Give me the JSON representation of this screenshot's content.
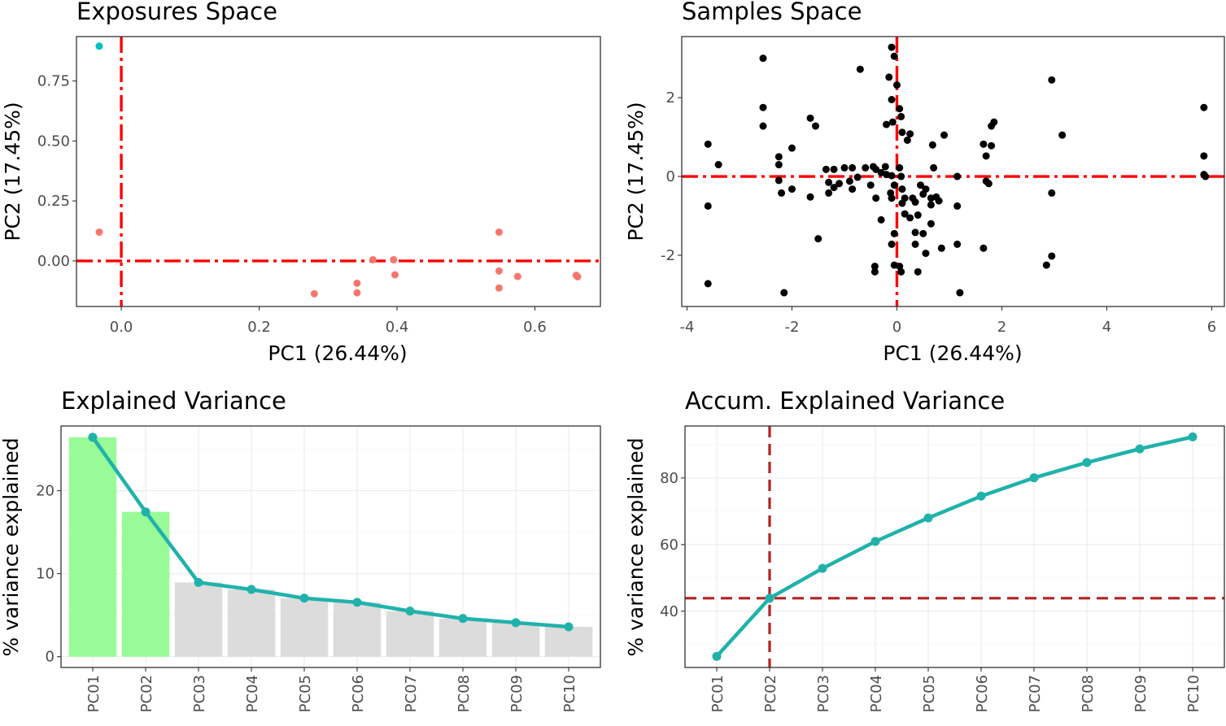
{
  "chart_data": [
    {
      "type": "scatter",
      "title": "Exposures Space",
      "xlabel": "PC1 (26.44%)",
      "ylabel": "PC2 (17.45%)",
      "xlim": [
        -0.065,
        0.695
      ],
      "ylim": [
        -0.19,
        0.935
      ],
      "xticks": [
        0.0,
        0.2,
        0.4,
        0.6
      ],
      "xtick_labels": [
        "0.0",
        "0.2",
        "0.4",
        "0.6"
      ],
      "yticks": [
        0.0,
        0.25,
        0.5,
        0.75
      ],
      "ytick_labels": [
        "0.00",
        "0.25",
        "0.50",
        "0.75"
      ],
      "grid": false,
      "reference_lines": {
        "x": 0,
        "y": 0,
        "color": "#ff0000",
        "style": "dashdot"
      },
      "series": [
        {
          "color": "#00bfc4",
          "points": [
            [
              -0.032,
              0.895
            ]
          ]
        },
        {
          "color": "#f8766d",
          "points": [
            [
              -0.032,
              0.12
            ],
            [
              0.28,
              -0.137
            ],
            [
              0.342,
              -0.093
            ],
            [
              0.342,
              -0.133
            ],
            [
              0.365,
              0.005
            ],
            [
              0.395,
              0.005
            ],
            [
              0.397,
              -0.058
            ],
            [
              0.548,
              0.12
            ],
            [
              0.548,
              -0.042
            ],
            [
              0.548,
              -0.113
            ],
            [
              0.575,
              -0.065
            ],
            [
              0.66,
              -0.06
            ],
            [
              0.662,
              -0.066
            ]
          ]
        }
      ]
    },
    {
      "type": "scatter",
      "title": "Samples Space",
      "xlabel": "PC1 (26.44%)",
      "ylabel": "PC2 (17.45%)",
      "xlim": [
        -4.1,
        6.24
      ],
      "ylim": [
        -3.3,
        3.55
      ],
      "xticks": [
        -4,
        -2,
        0,
        2,
        4,
        6
      ],
      "xtick_labels": [
        "-4",
        "-2",
        "0",
        "2",
        "4",
        "6"
      ],
      "yticks": [
        -2,
        0,
        2
      ],
      "ytick_labels": [
        "-2",
        "0",
        "2"
      ],
      "grid": false,
      "reference_lines": {
        "x": 0,
        "y": 0,
        "color": "#ff0000",
        "style": "dashdot"
      },
      "series": [
        {
          "color": "#000000",
          "points": [
            [
              -3.6,
              0.82
            ],
            [
              -3.4,
              0.3
            ],
            [
              -3.6,
              -0.75
            ],
            [
              -3.6,
              -2.72
            ],
            [
              -2.55,
              3.0
            ],
            [
              -2.55,
              1.75
            ],
            [
              -2.55,
              1.28
            ],
            [
              -2.25,
              0.5
            ],
            [
              -2.25,
              0.3
            ],
            [
              -2.25,
              -0.1
            ],
            [
              -2.2,
              -0.42
            ],
            [
              -2.0,
              0.72
            ],
            [
              -2.0,
              -0.32
            ],
            [
              -2.15,
              -2.95
            ],
            [
              -1.65,
              1.48
            ],
            [
              -1.55,
              1.28
            ],
            [
              -1.65,
              -0.52
            ],
            [
              -1.5,
              -1.58
            ],
            [
              -1.35,
              0.18
            ],
            [
              -1.3,
              -0.15
            ],
            [
              -1.3,
              -0.42
            ],
            [
              -1.2,
              0.18
            ],
            [
              -1.1,
              -0.18
            ],
            [
              -1.2,
              -0.28
            ],
            [
              -1.0,
              0.22
            ],
            [
              -0.9,
              -0.12
            ],
            [
              -0.85,
              -0.32
            ],
            [
              -0.85,
              0.22
            ],
            [
              -0.7,
              2.72
            ],
            [
              -0.75,
              -0.02
            ],
            [
              -0.6,
              0.22
            ],
            [
              -0.5,
              -0.22
            ],
            [
              -0.45,
              0.25
            ],
            [
              -0.4,
              0.18
            ],
            [
              -0.3,
              0.1
            ],
            [
              -0.4,
              -0.55
            ],
            [
              -0.42,
              -2.28
            ],
            [
              -0.42,
              -2.42
            ],
            [
              -0.3,
              -1.1
            ],
            [
              -0.2,
              1.32
            ],
            [
              -0.22,
              0.25
            ],
            [
              -0.2,
              0.05
            ],
            [
              -0.12,
              -0.42
            ],
            [
              -0.1,
              -0.55
            ],
            [
              -0.15,
              2.52
            ],
            [
              -0.1,
              1.95
            ],
            [
              -0.1,
              3.28
            ],
            [
              -0.05,
              3.05
            ],
            [
              0.0,
              2.32
            ],
            [
              -0.1,
              0.02
            ],
            [
              -0.05,
              -0.22
            ],
            [
              -0.08,
              1.38
            ],
            [
              -0.05,
              -1.45
            ],
            [
              -0.1,
              -1.72
            ],
            [
              -0.05,
              -2.25
            ],
            [
              0.05,
              1.72
            ],
            [
              0.08,
              1.52
            ],
            [
              0.1,
              1.12
            ],
            [
              0.05,
              0.22
            ],
            [
              0.08,
              0.0
            ],
            [
              0.1,
              -0.32
            ],
            [
              0.15,
              -0.55
            ],
            [
              0.1,
              -0.68
            ],
            [
              0.05,
              -2.28
            ],
            [
              0.08,
              -2.42
            ],
            [
              0.2,
              0.92
            ],
            [
              0.25,
              1.08
            ],
            [
              0.15,
              -0.95
            ],
            [
              0.25,
              -1.05
            ],
            [
              0.3,
              -0.55
            ],
            [
              0.35,
              -0.65
            ],
            [
              0.35,
              -1.42
            ],
            [
              0.35,
              -1.72
            ],
            [
              0.4,
              -0.98
            ],
            [
              0.45,
              -0.22
            ],
            [
              0.4,
              -2.42
            ],
            [
              0.5,
              -1.45
            ],
            [
              0.55,
              -0.32
            ],
            [
              0.5,
              -0.45
            ],
            [
              0.55,
              -1.95
            ],
            [
              0.65,
              -0.55
            ],
            [
              0.65,
              -0.72
            ],
            [
              0.65,
              -1.2
            ],
            [
              0.68,
              0.8
            ],
            [
              0.7,
              0.22
            ],
            [
              0.75,
              -0.52
            ],
            [
              0.8,
              -0.62
            ],
            [
              0.85,
              -1.82
            ],
            [
              0.9,
              1.05
            ],
            [
              1.15,
              0.0
            ],
            [
              1.15,
              -0.75
            ],
            [
              1.15,
              -1.72
            ],
            [
              1.2,
              -2.95
            ],
            [
              1.65,
              0.82
            ],
            [
              1.65,
              -1.82
            ],
            [
              1.7,
              -0.12
            ],
            [
              1.75,
              -0.18
            ],
            [
              1.7,
              0.52
            ],
            [
              1.8,
              1.28
            ],
            [
              1.85,
              1.38
            ],
            [
              1.8,
              0.78
            ],
            [
              2.95,
              2.45
            ],
            [
              2.95,
              -0.42
            ],
            [
              2.95,
              -2.02
            ],
            [
              2.85,
              -2.25
            ],
            [
              3.15,
              1.05
            ],
            [
              5.85,
              1.75
            ],
            [
              5.85,
              0.52
            ],
            [
              5.85,
              0.05
            ],
            [
              5.88,
              0.0
            ]
          ]
        }
      ]
    },
    {
      "type": "bar",
      "title": "Explained Variance",
      "xlabel": "",
      "ylabel": "% variance explained",
      "categories": [
        "PC01",
        "PC02",
        "PC03",
        "PC04",
        "PC05",
        "PC06",
        "PC07",
        "PC08",
        "PC09",
        "PC10"
      ],
      "values": [
        26.44,
        17.45,
        8.95,
        8.1,
        7.05,
        6.55,
        5.5,
        4.6,
        4.1,
        3.6
      ],
      "bar_colors": [
        "#98fb98",
        "#98fb98",
        "#dcdcdc",
        "#dcdcdc",
        "#dcdcdc",
        "#dcdcdc",
        "#dcdcdc",
        "#dcdcdc",
        "#dcdcdc",
        "#dcdcdc"
      ],
      "line_color": "#20b2aa",
      "ylim": [
        -1.3,
        27.8
      ],
      "yticks": [
        0,
        10,
        20
      ],
      "ytick_labels": [
        "0",
        "10",
        "20"
      ],
      "grid": true
    },
    {
      "type": "line",
      "title": "Accum. Explained Variance",
      "xlabel": "",
      "ylabel": "% variance explained",
      "categories": [
        "PC01",
        "PC02",
        "PC03",
        "PC04",
        "PC05",
        "PC06",
        "PC07",
        "PC08",
        "PC09",
        "PC10"
      ],
      "values": [
        26.44,
        43.89,
        52.84,
        60.94,
        67.99,
        74.54,
        80.04,
        84.64,
        88.74,
        92.34
      ],
      "line_color": "#20b2aa",
      "ylim": [
        23.1,
        95.6
      ],
      "yticks": [
        40,
        60,
        80
      ],
      "ytick_labels": [
        "40",
        "60",
        "80"
      ],
      "grid": true,
      "reference_lines": {
        "x_category": "PC02",
        "y": 43.89,
        "color": "#b22222",
        "style": "dashed"
      }
    }
  ]
}
